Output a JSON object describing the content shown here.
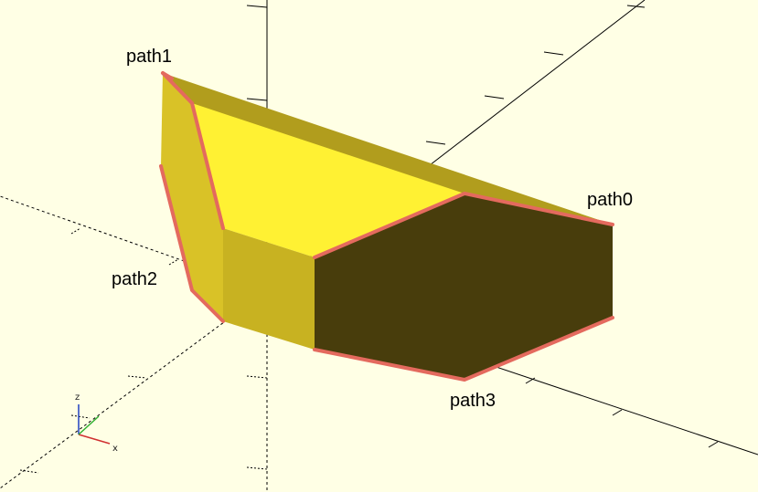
{
  "viewport": {
    "background": "#ffffe5",
    "labels": {
      "path0": "path0",
      "path1": "path1",
      "path2": "path2",
      "path3": "path3"
    },
    "axis_indicator": {
      "x": "x",
      "y": "y",
      "z": "z"
    },
    "colors": {
      "face_top": "#fff133",
      "face_left": "#d9c227",
      "face_front": "#c8b221",
      "face_right": "#483d0c",
      "face_strip": "#b19d1d",
      "edge_highlight": "#e46a5e"
    }
  }
}
